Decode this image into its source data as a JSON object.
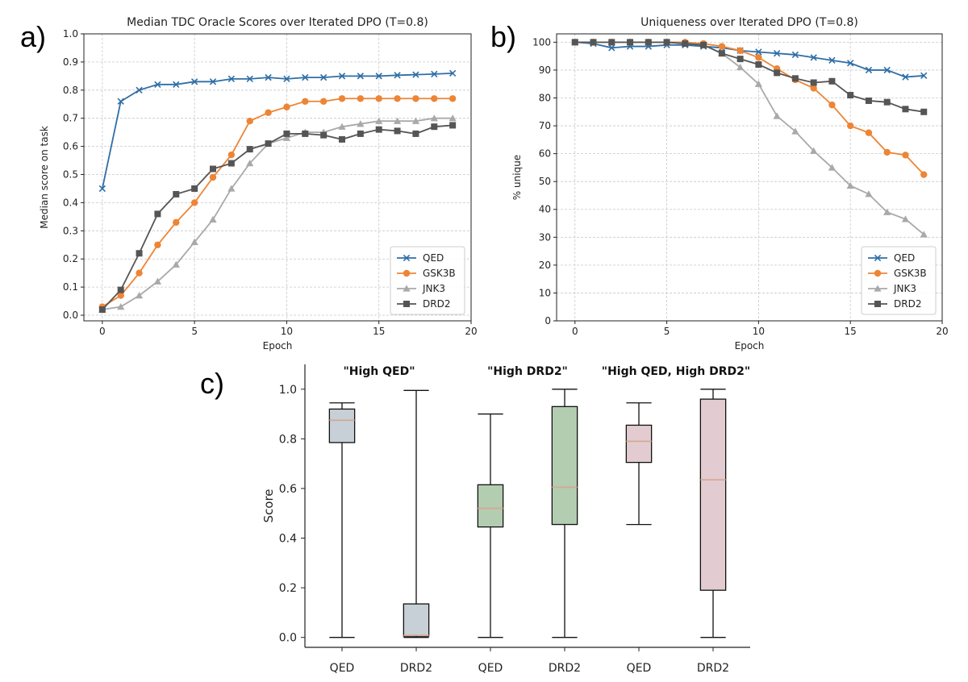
{
  "panel_labels": [
    "a)",
    "b)",
    "c)"
  ],
  "chart_data": [
    {
      "type": "line",
      "title": "Median TDC Oracle Scores over Iterated DPO (T=0.8)",
      "xlabel": "Epoch",
      "ylabel": "Median score on task",
      "xlim": [
        -1,
        20
      ],
      "ylim": [
        -0.02,
        1.0
      ],
      "xticks": [
        0,
        5,
        10,
        15,
        20
      ],
      "yticks": [
        0.0,
        0.1,
        0.2,
        0.3,
        0.4,
        0.5,
        0.6,
        0.7,
        0.8,
        0.9,
        1.0
      ],
      "grid": true,
      "legend_position": "lower-right",
      "x": [
        0,
        1,
        2,
        3,
        4,
        5,
        6,
        7,
        8,
        9,
        10,
        11,
        12,
        13,
        14,
        15,
        16,
        17,
        18,
        19
      ],
      "series": [
        {
          "name": "QED",
          "color": "#2f6ea5",
          "marker": "x",
          "values": [
            0.45,
            0.76,
            0.8,
            0.82,
            0.82,
            0.83,
            0.83,
            0.84,
            0.84,
            0.845,
            0.84,
            0.845,
            0.845,
            0.85,
            0.85,
            0.85,
            0.853,
            0.855,
            0.857,
            0.86
          ]
        },
        {
          "name": "GSK3B",
          "color": "#ed8536",
          "marker": "circle",
          "values": [
            0.03,
            0.07,
            0.15,
            0.25,
            0.33,
            0.4,
            0.49,
            0.57,
            0.69,
            0.72,
            0.74,
            0.76,
            0.76,
            0.77,
            0.77,
            0.77,
            0.77,
            0.77,
            0.77,
            0.77
          ]
        },
        {
          "name": "JNK3",
          "color": "#a9a9a9",
          "marker": "triangle",
          "values": [
            0.02,
            0.03,
            0.07,
            0.12,
            0.18,
            0.26,
            0.34,
            0.45,
            0.54,
            0.61,
            0.63,
            0.65,
            0.65,
            0.67,
            0.68,
            0.69,
            0.69,
            0.69,
            0.7,
            0.7
          ]
        },
        {
          "name": "DRD2",
          "color": "#555555",
          "marker": "square",
          "values": [
            0.02,
            0.09,
            0.22,
            0.36,
            0.43,
            0.45,
            0.52,
            0.54,
            0.59,
            0.61,
            0.645,
            0.645,
            0.64,
            0.625,
            0.645,
            0.66,
            0.655,
            0.645,
            0.67,
            0.675
          ]
        }
      ]
    },
    {
      "type": "line",
      "title": "Uniqueness over Iterated DPO (T=0.8)",
      "xlabel": "Epoch",
      "ylabel": "% unique",
      "xlim": [
        -1,
        20
      ],
      "ylim": [
        0,
        103
      ],
      "xticks": [
        0,
        5,
        10,
        15,
        20
      ],
      "yticks": [
        0,
        10,
        20,
        30,
        40,
        50,
        60,
        70,
        80,
        90,
        100
      ],
      "grid": true,
      "legend_position": "lower-right",
      "x": [
        0,
        1,
        2,
        3,
        4,
        5,
        6,
        7,
        8,
        9,
        10,
        11,
        12,
        13,
        14,
        15,
        16,
        17,
        18,
        19
      ],
      "series": [
        {
          "name": "QED",
          "color": "#2f6ea5",
          "marker": "x",
          "values": [
            100,
            99.5,
            98,
            98.5,
            98.5,
            99,
            99,
            98.5,
            98,
            97,
            96.5,
            96,
            95.5,
            94.5,
            93.5,
            92.5,
            90,
            90,
            87.5,
            88
          ]
        },
        {
          "name": "GSK3B",
          "color": "#ed8536",
          "marker": "circle",
          "values": [
            100,
            100,
            100,
            100,
            100,
            100,
            100,
            99.5,
            98.5,
            97,
            94.5,
            90.5,
            86.5,
            83.5,
            77.5,
            70,
            67.5,
            60.5,
            59.5,
            52.5
          ]
        },
        {
          "name": "JNK3",
          "color": "#a9a9a9",
          "marker": "triangle",
          "values": [
            100,
            100,
            100,
            100,
            100,
            100,
            99.5,
            99,
            96,
            91,
            85,
            73.5,
            68,
            61,
            55,
            48.5,
            45.5,
            39,
            36.5,
            31
          ]
        },
        {
          "name": "DRD2",
          "color": "#555555",
          "marker": "square",
          "values": [
            100,
            100,
            100,
            100,
            100,
            100,
            99.5,
            99,
            96,
            94,
            92,
            89,
            87,
            85.5,
            86,
            81,
            79,
            78.5,
            76,
            75
          ]
        }
      ]
    },
    {
      "type": "box",
      "ylabel": "Score",
      "ylim": [
        -0.04,
        1.1
      ],
      "yticks": [
        0.0,
        0.2,
        0.4,
        0.6,
        0.8,
        1.0
      ],
      "grid": false,
      "groups": [
        {
          "title": "\"High QED\"",
          "color": "#c6d0d6"
        },
        {
          "title": "\"High DRD2\"",
          "color": "#b3cdb0"
        },
        {
          "title": "\"High QED, High DRD2\"",
          "color": "#e2ccd1"
        }
      ],
      "median_color": "#d9a58e",
      "boxes": [
        {
          "label": "QED",
          "group": 0,
          "min": 0.0,
          "q1": 0.785,
          "median": 0.875,
          "q3": 0.92,
          "max": 0.945
        },
        {
          "label": "DRD2",
          "group": 0,
          "min": 0.0,
          "q1": 0.005,
          "median": 0.008,
          "q3": 0.135,
          "max": 0.995
        },
        {
          "label": "QED",
          "group": 1,
          "min": 0.0,
          "q1": 0.445,
          "median": 0.52,
          "q3": 0.615,
          "max": 0.9
        },
        {
          "label": "DRD2",
          "group": 1,
          "min": 0.0,
          "q1": 0.455,
          "median": 0.605,
          "q3": 0.93,
          "max": 1.0
        },
        {
          "label": "QED",
          "group": 2,
          "min": 0.455,
          "q1": 0.705,
          "median": 0.79,
          "q3": 0.855,
          "max": 0.945
        },
        {
          "label": "DRD2",
          "group": 2,
          "min": 0.0,
          "q1": 0.19,
          "median": 0.635,
          "q3": 0.96,
          "max": 1.0
        }
      ]
    }
  ]
}
